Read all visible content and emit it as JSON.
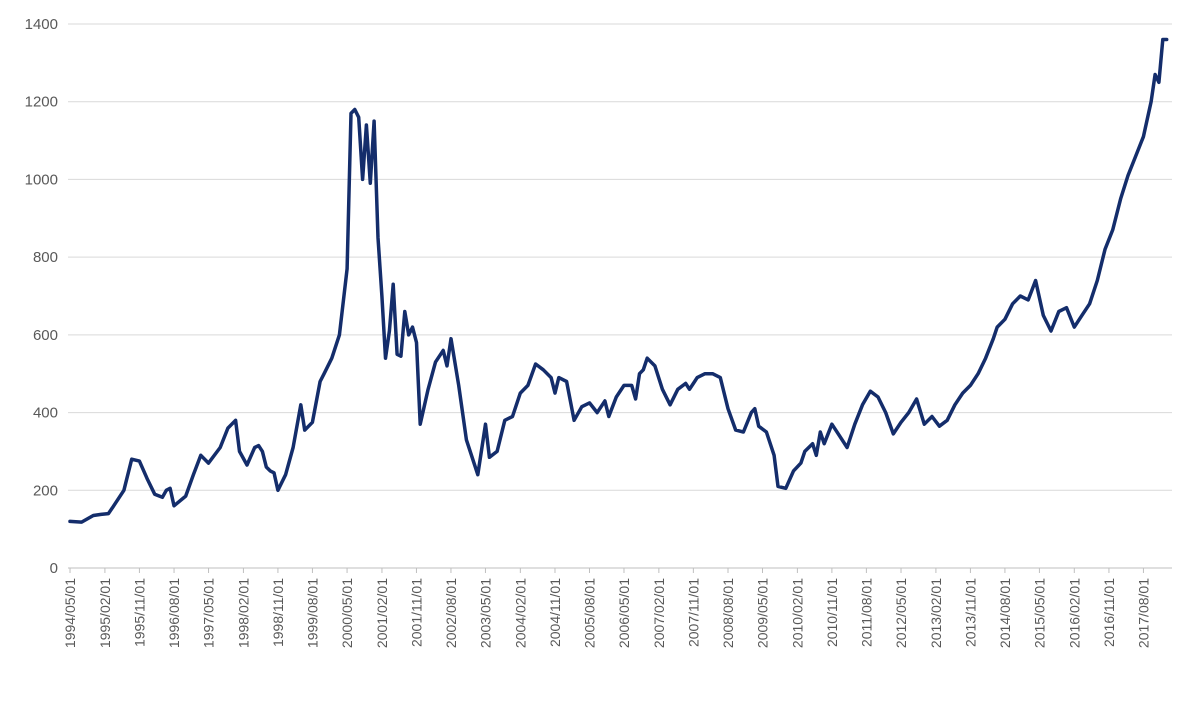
{
  "chart_data": {
    "type": "line",
    "title": "",
    "xlabel": "",
    "ylabel": "",
    "ylim": [
      0,
      1400
    ],
    "yticks": [
      0,
      200,
      400,
      600,
      800,
      1000,
      1200,
      1400
    ],
    "x_tick_labels": [
      "1994/05/01",
      "1995/02/01",
      "1995/11/01",
      "1996/08/01",
      "1997/05/01",
      "1998/02/01",
      "1998/11/01",
      "1999/08/01",
      "2000/05/01",
      "2001/02/01",
      "2001/11/01",
      "2002/08/01",
      "2003/05/01",
      "2004/02/01",
      "2004/11/01",
      "2005/08/01",
      "2006/05/01",
      "2007/02/01",
      "2007/11/01",
      "2008/08/01",
      "2009/05/01",
      "2010/02/01",
      "2010/11/01",
      "2011/08/01",
      "2012/05/01",
      "2013/02/01",
      "2013/11/01",
      "2014/08/01",
      "2015/05/01",
      "2016/02/01",
      "2016/11/01",
      "2017/08/01"
    ],
    "grid": true,
    "line_color": "#142d6b",
    "series": [
      {
        "values": [
          [
            "1994/05/01",
            120
          ],
          [
            "1994/08/01",
            118
          ],
          [
            "1994/11/01",
            135
          ],
          [
            "1995/01/01",
            138
          ],
          [
            "1995/03/01",
            140
          ],
          [
            "1995/04/01",
            155
          ],
          [
            "1995/07/01",
            200
          ],
          [
            "1995/09/01",
            280
          ],
          [
            "1995/11/01",
            275
          ],
          [
            "1996/01/01",
            230
          ],
          [
            "1996/03/01",
            190
          ],
          [
            "1996/05/01",
            182
          ],
          [
            "1996/06/01",
            200
          ],
          [
            "1996/07/01",
            205
          ],
          [
            "1996/08/01",
            160
          ],
          [
            "1996/11/01",
            185
          ],
          [
            "1997/01/01",
            240
          ],
          [
            "1997/03/01",
            290
          ],
          [
            "1997/05/01",
            270
          ],
          [
            "1997/08/01",
            310
          ],
          [
            "1997/10/01",
            360
          ],
          [
            "1997/12/01",
            380
          ],
          [
            "1998/01/01",
            300
          ],
          [
            "1998/03/01",
            265
          ],
          [
            "1998/05/01",
            310
          ],
          [
            "1998/06/01",
            315
          ],
          [
            "1998/07/01",
            300
          ],
          [
            "1998/08/01",
            260
          ],
          [
            "1998/09/01",
            250
          ],
          [
            "1998/10/01",
            245
          ],
          [
            "1998/11/01",
            200
          ],
          [
            "1999/01/01",
            240
          ],
          [
            "1999/03/01",
            310
          ],
          [
            "1999/05/01",
            420
          ],
          [
            "1999/06/01",
            355
          ],
          [
            "1999/08/01",
            375
          ],
          [
            "1999/10/01",
            480
          ],
          [
            "1999/11/01",
            500
          ],
          [
            "2000/01/01",
            540
          ],
          [
            "2000/03/01",
            600
          ],
          [
            "2000/05/01",
            770
          ],
          [
            "2000/06/01",
            1170
          ],
          [
            "2000/07/01",
            1180
          ],
          [
            "2000/08/01",
            1160
          ],
          [
            "2000/09/01",
            1000
          ],
          [
            "2000/10/01",
            1140
          ],
          [
            "2000/11/01",
            990
          ],
          [
            "2000/12/01",
            1150
          ],
          [
            "2001/01/01",
            850
          ],
          [
            "2001/02/01",
            700
          ],
          [
            "2001/03/01",
            540
          ],
          [
            "2001/04/01",
            610
          ],
          [
            "2001/05/01",
            730
          ],
          [
            "2001/06/01",
            550
          ],
          [
            "2001/07/01",
            545
          ],
          [
            "2001/08/01",
            660
          ],
          [
            "2001/09/01",
            600
          ],
          [
            "2001/10/01",
            620
          ],
          [
            "2001/11/01",
            580
          ],
          [
            "2001/12/01",
            370
          ],
          [
            "2002/02/01",
            460
          ],
          [
            "2002/04/01",
            530
          ],
          [
            "2002/06/01",
            560
          ],
          [
            "2002/07/01",
            520
          ],
          [
            "2002/08/01",
            590
          ],
          [
            "2002/10/01",
            470
          ],
          [
            "2002/12/01",
            330
          ],
          [
            "2003/03/01",
            240
          ],
          [
            "2003/05/01",
            370
          ],
          [
            "2003/06/01",
            285
          ],
          [
            "2003/08/01",
            300
          ],
          [
            "2003/10/01",
            380
          ],
          [
            "2003/12/01",
            390
          ],
          [
            "2004/02/01",
            450
          ],
          [
            "2004/04/01",
            470
          ],
          [
            "2004/06/01",
            525
          ],
          [
            "2004/08/01",
            510
          ],
          [
            "2004/10/01",
            490
          ],
          [
            "2004/11/01",
            450
          ],
          [
            "2004/12/01",
            490
          ],
          [
            "2005/02/01",
            480
          ],
          [
            "2005/04/01",
            380
          ],
          [
            "2005/06/01",
            415
          ],
          [
            "2005/08/01",
            425
          ],
          [
            "2005/10/01",
            400
          ],
          [
            "2005/12/01",
            430
          ],
          [
            "2006/01/01",
            390
          ],
          [
            "2006/03/01",
            440
          ],
          [
            "2006/05/01",
            470
          ],
          [
            "2006/07/01",
            470
          ],
          [
            "2006/08/01",
            435
          ],
          [
            "2006/09/01",
            500
          ],
          [
            "2006/10/01",
            510
          ],
          [
            "2006/11/01",
            540
          ],
          [
            "2007/01/01",
            520
          ],
          [
            "2007/03/01",
            460
          ],
          [
            "2007/05/01",
            420
          ],
          [
            "2007/07/01",
            460
          ],
          [
            "2007/09/01",
            475
          ],
          [
            "2007/10/01",
            460
          ],
          [
            "2007/11/01",
            475
          ],
          [
            "2007/12/01",
            490
          ],
          [
            "2008/02/01",
            500
          ],
          [
            "2008/04/01",
            500
          ],
          [
            "2008/06/01",
            490
          ],
          [
            "2008/08/01",
            410
          ],
          [
            "2008/10/01",
            355
          ],
          [
            "2008/12/01",
            350
          ],
          [
            "2009/02/01",
            400
          ],
          [
            "2009/03/01",
            410
          ],
          [
            "2009/04/01",
            365
          ],
          [
            "2009/06/01",
            350
          ],
          [
            "2009/08/01",
            290
          ],
          [
            "2009/09/01",
            210
          ],
          [
            "2009/11/01",
            205
          ],
          [
            "2010/01/01",
            250
          ],
          [
            "2010/03/01",
            270
          ],
          [
            "2010/04/01",
            300
          ],
          [
            "2010/06/01",
            320
          ],
          [
            "2010/07/01",
            290
          ],
          [
            "2010/08/01",
            350
          ],
          [
            "2010/09/01",
            320
          ],
          [
            "2010/11/01",
            370
          ],
          [
            "2011/01/01",
            340
          ],
          [
            "2011/03/01",
            310
          ],
          [
            "2011/05/01",
            370
          ],
          [
            "2011/07/01",
            420
          ],
          [
            "2011/09/01",
            455
          ],
          [
            "2011/11/01",
            440
          ],
          [
            "2012/01/01",
            400
          ],
          [
            "2012/03/01",
            345
          ],
          [
            "2012/05/01",
            375
          ],
          [
            "2012/07/01",
            400
          ],
          [
            "2012/09/01",
            435
          ],
          [
            "2012/11/01",
            370
          ],
          [
            "2013/01/01",
            390
          ],
          [
            "2013/03/01",
            365
          ],
          [
            "2013/05/01",
            380
          ],
          [
            "2013/07/01",
            420
          ],
          [
            "2013/09/01",
            450
          ],
          [
            "2013/11/01",
            470
          ],
          [
            "2014/01/01",
            500
          ],
          [
            "2014/03/01",
            540
          ],
          [
            "2014/05/01",
            590
          ],
          [
            "2014/06/01",
            620
          ],
          [
            "2014/08/01",
            640
          ],
          [
            "2014/10/01",
            680
          ],
          [
            "2014/12/01",
            700
          ],
          [
            "2015/02/01",
            690
          ],
          [
            "2015/04/01",
            740
          ],
          [
            "2015/06/01",
            650
          ],
          [
            "2015/08/01",
            610
          ],
          [
            "2015/10/01",
            660
          ],
          [
            "2015/12/01",
            670
          ],
          [
            "2016/02/01",
            620
          ],
          [
            "2016/04/01",
            650
          ],
          [
            "2016/06/01",
            680
          ],
          [
            "2016/08/01",
            740
          ],
          [
            "2016/10/01",
            820
          ],
          [
            "2016/12/01",
            870
          ],
          [
            "2017/02/01",
            950
          ],
          [
            "2017/04/01",
            1010
          ],
          [
            "2017/06/01",
            1060
          ],
          [
            "2017/08/01",
            1110
          ],
          [
            "2017/10/01",
            1200
          ],
          [
            "2017/11/01",
            1270
          ],
          [
            "2017/12/01",
            1250
          ],
          [
            "2018/01/01",
            1360
          ],
          [
            "2018/02/01",
            1360
          ]
        ]
      }
    ]
  }
}
